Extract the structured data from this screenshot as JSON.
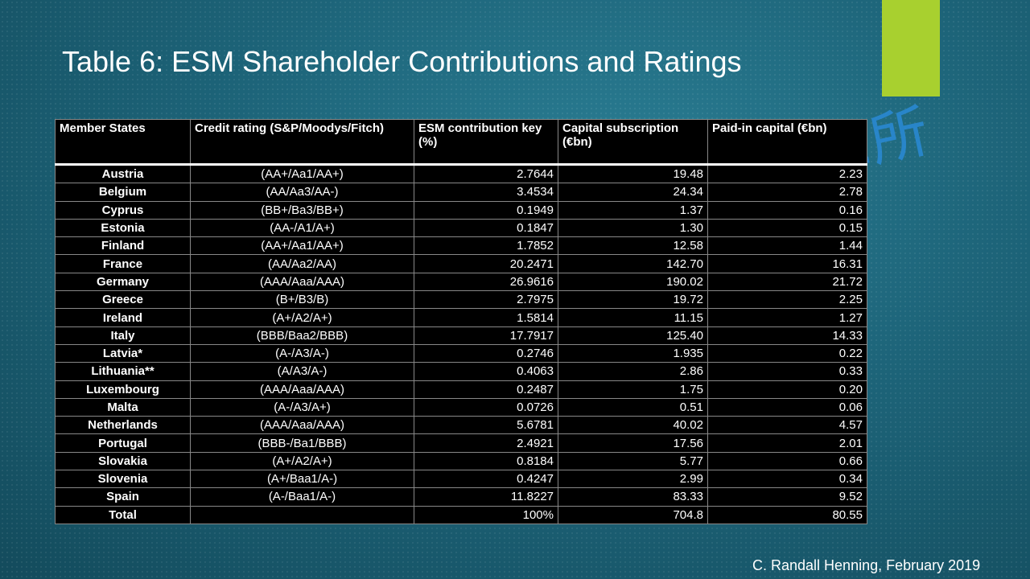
{
  "title": "Table 6: ESM Shareholder Contributions and Ratings",
  "table": {
    "header": [
      "Member States",
      "Credit rating (S&P/Moodys/Fitch)",
      "ESM contribution key (%)",
      "Capital subscription (€bn)",
      "Paid-in capital (€bn)"
    ],
    "rows": [
      [
        "Austria",
        "(AA+/Aa1/AA+)",
        "2.7644",
        "19.48",
        "2.23"
      ],
      [
        "Belgium",
        "(AA/Aa3/AA-)",
        "3.4534",
        "24.34",
        "2.78"
      ],
      [
        "Cyprus",
        "(BB+/Ba3/BB+)",
        "0.1949",
        "1.37",
        "0.16"
      ],
      [
        "Estonia",
        "(AA-/A1/A+)",
        "0.1847",
        "1.30",
        "0.15"
      ],
      [
        "Finland",
        "(AA+/Aa1/AA+)",
        "1.7852",
        "12.58",
        "1.44"
      ],
      [
        "France",
        "(AA/Aa2/AA)",
        "20.2471",
        "142.70",
        "16.31"
      ],
      [
        "Germany",
        "(AAA/Aaa/AAA)",
        "26.9616",
        "190.02",
        "21.72"
      ],
      [
        "Greece",
        "(B+/B3/B)",
        "2.7975",
        "19.72",
        "2.25"
      ],
      [
        "Ireland",
        "(A+/A2/A+)",
        "1.5814",
        "11.15",
        "1.27"
      ],
      [
        "Italy",
        "(BBB/Baa2/BBB)",
        "17.7917",
        "125.40",
        "14.33"
      ],
      [
        "Latvia*",
        "(A-/A3/A-)",
        "0.2746",
        "1.935",
        "0.22"
      ],
      [
        "Lithuania**",
        "(A/A3/A-)",
        "0.4063",
        "2.86",
        "0.33"
      ],
      [
        "Luxembourg",
        "(AAA/Aaa/AAA)",
        "0.2487",
        "1.75",
        "0.20"
      ],
      [
        "Malta",
        "(A-/A3/A+)",
        "0.0726",
        "0.51",
        "0.06"
      ],
      [
        "Netherlands",
        "(AAA/Aaa/AAA)",
        "5.6781",
        "40.02",
        "4.57"
      ],
      [
        "Portugal",
        "(BBB-/Ba1/BBB)",
        "2.4921",
        "17.56",
        "2.01"
      ],
      [
        "Slovakia",
        "(A+/A2/A+)",
        "0.8184",
        "5.77",
        "0.66"
      ],
      [
        "Slovenia",
        "(A+/Baa1/A-)",
        "0.4247",
        "2.99",
        "0.34"
      ],
      [
        "Spain",
        "(A-/Baa1/A-)",
        "11.8227",
        "83.33",
        "9.52"
      ],
      [
        "Total",
        null,
        "100%",
        "704.8",
        "80.55"
      ]
    ]
  },
  "watermark": ".所",
  "footer": "C. Randall Henning, February 2019"
}
